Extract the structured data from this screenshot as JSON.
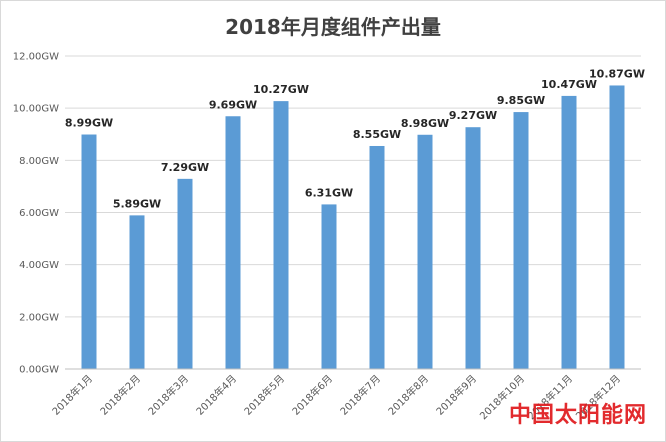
{
  "chart_data": {
    "type": "bar",
    "title": "2018年月度组件产出量",
    "xlabel": "",
    "ylabel": "",
    "ylim": [
      0,
      12
    ],
    "yticks": [
      "0.00GW",
      "2.00GW",
      "4.00GW",
      "6.00GW",
      "8.00GW",
      "10.00GW",
      "12.00GW"
    ],
    "ytick_values": [
      0,
      2,
      4,
      6,
      8,
      10,
      12
    ],
    "categories": [
      "2018年1月",
      "2018年2月",
      "2018年3月",
      "2018年4月",
      "2018年5月",
      "2018年6月",
      "2018年7月",
      "2018年8月",
      "2018年9月",
      "2018年10月",
      "2018年11月",
      "2018年12月"
    ],
    "values": [
      8.99,
      5.89,
      7.29,
      9.69,
      10.27,
      6.31,
      8.55,
      8.98,
      9.27,
      9.85,
      10.47,
      10.87
    ],
    "data_labels": [
      "8.99GW",
      "5.89GW",
      "7.29GW",
      "9.69GW",
      "10.27GW",
      "6.31GW",
      "8.55GW",
      "8.98GW",
      "9.27GW",
      "9.85GW",
      "10.47GW",
      "10.87GW"
    ],
    "bar_color": "#5b9bd5",
    "grid": true
  },
  "watermark": "中国太阳能网"
}
